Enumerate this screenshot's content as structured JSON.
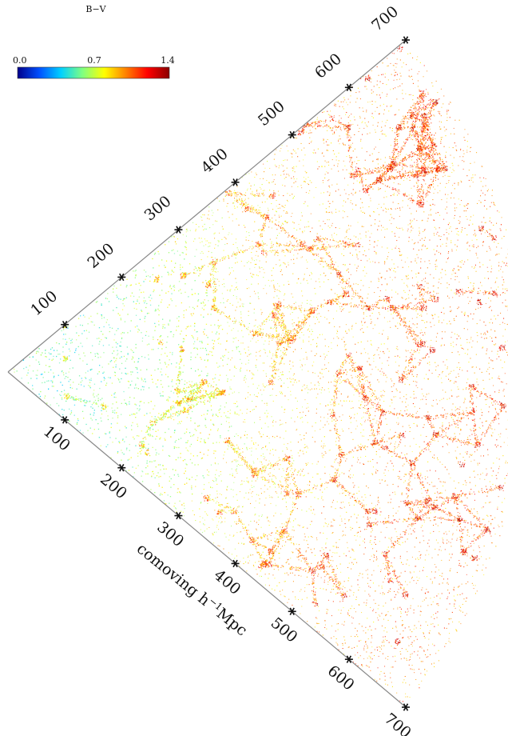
{
  "chart_data": {
    "type": "scatter",
    "description_note": "",
    "colorbar": {
      "label": "B−V",
      "min": 0.0,
      "mid": 0.7,
      "max": 1.4,
      "tick_labels": [
        "0.0",
        "0.7",
        "1.4"
      ],
      "colors": [
        "#00008a",
        "#0050ff",
        "#00d0ff",
        "#80ff80",
        "#ffff00",
        "#ff8000",
        "#ff0000",
        "#8a0000"
      ]
    },
    "upper_edge": {
      "ticks": [
        100,
        200,
        300,
        400,
        500,
        600,
        700
      ],
      "tick_labels": [
        "100",
        "200",
        "300",
        "400",
        "500",
        "600",
        "700"
      ]
    },
    "lower_edge": {
      "ticks": [
        100,
        200,
        300,
        400,
        500,
        600,
        700
      ],
      "tick_labels": [
        "100",
        "200",
        "300",
        "400",
        "500",
        "600",
        "700"
      ],
      "axis_label_main": "comoving h",
      "axis_label_sup": "−1",
      "axis_label_tail": "Mpc"
    },
    "distance_range": [
      0,
      700
    ],
    "color_trend": [
      {
        "distance": 100,
        "b_minus_v": 0.55
      },
      {
        "distance": 300,
        "b_minus_v": 0.75
      },
      {
        "distance": 500,
        "b_minus_v": 0.95
      },
      {
        "distance": 700,
        "b_minus_v": 1.0
      }
    ]
  }
}
